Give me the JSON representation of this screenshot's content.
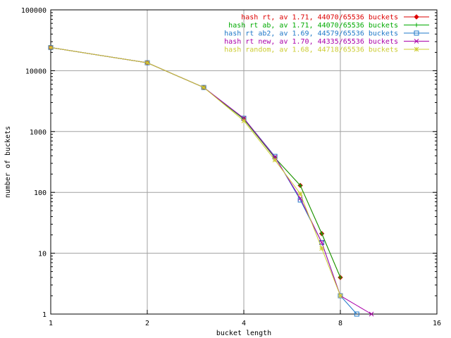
{
  "chart_data": {
    "type": "line",
    "title": "",
    "xlabel": "bucket length",
    "ylabel": "number of buckets",
    "xscale": "log2",
    "yscale": "log10",
    "xlim": [
      1,
      16
    ],
    "ylim": [
      1,
      100000
    ],
    "xticks": [
      1,
      2,
      4,
      8,
      16
    ],
    "yticks": [
      1,
      10,
      100,
      1000,
      10000,
      100000
    ],
    "xtick_labels": [
      "1",
      "2",
      "4",
      "8",
      "16"
    ],
    "ytick_labels": [
      "1",
      "10",
      "100",
      "1000",
      "10000",
      "100000"
    ],
    "grid": true,
    "legend_position": "top-right",
    "series": [
      {
        "name": "hash rt, av 1.71, 44070/65536 buckets",
        "color": "#dd0000",
        "marker": "diamond",
        "x": [
          1,
          2,
          3,
          4,
          5,
          6,
          7,
          8
        ],
        "y": [
          24000,
          13500,
          5300,
          1600,
          370,
          130,
          21,
          4
        ]
      },
      {
        "name": "hash rt ab, av 1.71, 44070/65536 buckets",
        "color": "#00aa00",
        "marker": "plus",
        "x": [
          1,
          2,
          3,
          4,
          5,
          6,
          7,
          8
        ],
        "y": [
          24000,
          13500,
          5300,
          1600,
          370,
          130,
          21,
          4
        ]
      },
      {
        "name": "hash rt ab2, av 1.69, 44579/65536 buckets",
        "color": "#1f78c8",
        "marker": "square",
        "x": [
          1,
          2,
          3,
          4,
          5,
          6,
          7,
          8,
          9
        ],
        "y": [
          24000,
          13500,
          5300,
          1650,
          390,
          75,
          15,
          2,
          1
        ]
      },
      {
        "name": "hash rt new, av 1.70, 44335/65536 buckets",
        "color": "#aa00aa",
        "marker": "x",
        "x": [
          1,
          2,
          3,
          4,
          5,
          6,
          7,
          8,
          10
        ],
        "y": [
          24000,
          13500,
          5300,
          1650,
          380,
          80,
          15,
          2,
          1
        ]
      },
      {
        "name": "hash random, av 1.68, 44718/65536 buckets",
        "color": "#cccc33",
        "marker": "star",
        "x": [
          1,
          2,
          3,
          4,
          5,
          6,
          7,
          8
        ],
        "y": [
          24000,
          13500,
          5300,
          1500,
          340,
          95,
          12,
          2
        ]
      }
    ]
  }
}
